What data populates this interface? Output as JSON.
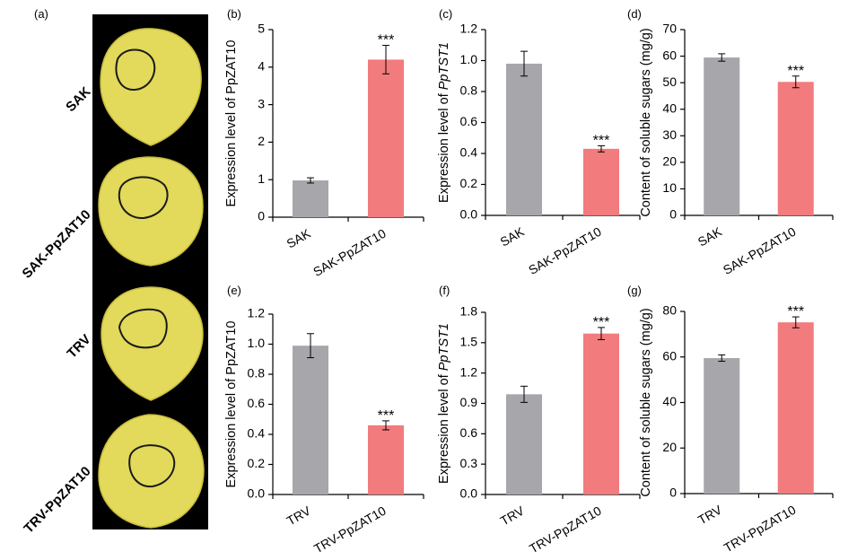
{
  "panel_a": {
    "letter": "(a)",
    "rows": [
      "SAK",
      "SAK-PpZAT10",
      "TRV",
      "TRV-PpZAT10"
    ],
    "colors": {
      "background": "#000000",
      "fruit": "#e3d95a",
      "fruit_edge": "#c8bb3f",
      "mark": "#1a1a1a"
    }
  },
  "colors": {
    "control": "#a7a6ab",
    "treatment": "#f27b7d",
    "axis": "#000000"
  },
  "chart_data": [
    {
      "id": "b",
      "letter": "(b)",
      "type": "bar",
      "categories": [
        "SAK",
        "SAK-PpZAT10"
      ],
      "values": [
        0.98,
        4.2
      ],
      "errors": [
        0.07,
        0.38
      ],
      "significance": [
        "",
        "***"
      ],
      "ylabel_parts": [
        {
          "text": "Expression level of PpZAT10",
          "italic": false
        }
      ],
      "ylim": [
        0,
        5
      ],
      "ticks": [
        0,
        1,
        2,
        3,
        4,
        5
      ],
      "decimals": 0
    },
    {
      "id": "c",
      "letter": "(c)",
      "type": "bar",
      "categories": [
        "SAK",
        "SAK-PpZAT10"
      ],
      "values": [
        0.98,
        0.43
      ],
      "errors": [
        0.08,
        0.02
      ],
      "significance": [
        "",
        "***"
      ],
      "ylabel_parts": [
        {
          "text": "Expression level of ",
          "italic": false
        },
        {
          "text": "PpTST1",
          "italic": true
        }
      ],
      "ylim": [
        0,
        1.2
      ],
      "ticks": [
        0,
        0.2,
        0.4,
        0.6,
        0.8,
        1.0,
        1.2
      ],
      "decimals": 1
    },
    {
      "id": "d",
      "letter": "(d)",
      "type": "bar",
      "categories": [
        "SAK",
        "SAK-PpZAT10"
      ],
      "values": [
        59.5,
        50.3
      ],
      "errors": [
        1.4,
        2.2
      ],
      "significance": [
        "",
        "***"
      ],
      "ylabel_parts": [
        {
          "text": "Content of soluble sugars (mg/g)",
          "italic": false
        }
      ],
      "ylim": [
        0,
        70
      ],
      "ticks": [
        0,
        10,
        20,
        30,
        40,
        50,
        60,
        70
      ],
      "decimals": 0
    },
    {
      "id": "e",
      "letter": "(e)",
      "type": "bar",
      "categories": [
        "TRV",
        "TRV-PpZAT10"
      ],
      "values": [
        0.99,
        0.46
      ],
      "errors": [
        0.08,
        0.03
      ],
      "significance": [
        "",
        "***"
      ],
      "ylabel_parts": [
        {
          "text": "Expression level of PpZAT10",
          "italic": false
        }
      ],
      "ylim": [
        0,
        1.2
      ],
      "ticks": [
        0,
        0.2,
        0.4,
        0.6,
        0.8,
        1.0,
        1.2
      ],
      "decimals": 1
    },
    {
      "id": "f",
      "letter": "(f)",
      "type": "bar",
      "categories": [
        "TRV",
        "TRV-PpZAT10"
      ],
      "values": [
        0.99,
        1.59
      ],
      "errors": [
        0.08,
        0.06
      ],
      "significance": [
        "",
        "***"
      ],
      "ylabel_parts": [
        {
          "text": "Expression level of ",
          "italic": false
        },
        {
          "text": "PpTST1",
          "italic": true
        }
      ],
      "ylim": [
        0,
        1.8
      ],
      "ticks": [
        0,
        0.3,
        0.6,
        0.9,
        1.2,
        1.5,
        1.8
      ],
      "decimals": 1
    },
    {
      "id": "g",
      "letter": "(g)",
      "type": "bar",
      "categories": [
        "TRV",
        "TRV-PpZAT10"
      ],
      "values": [
        59.5,
        75.2
      ],
      "errors": [
        1.4,
        2.4
      ],
      "significance": [
        "",
        "***"
      ],
      "ylabel_parts": [
        {
          "text": "Content of soluble sugars (mg/g)",
          "italic": false
        }
      ],
      "ylim": [
        0,
        80
      ],
      "ticks": [
        0,
        20,
        40,
        60,
        80
      ],
      "decimals": 0
    }
  ]
}
